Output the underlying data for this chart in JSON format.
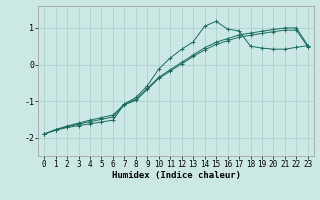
{
  "xlabel": "Humidex (Indice chaleur)",
  "background_color": "#cce8e4",
  "grid_color": "#aacfcb",
  "line_color": "#1a6b5e",
  "xlim": [
    -0.5,
    23.5
  ],
  "ylim": [
    -2.5,
    1.6
  ],
  "xticks": [
    0,
    1,
    2,
    3,
    4,
    5,
    6,
    7,
    8,
    9,
    10,
    11,
    12,
    13,
    14,
    15,
    16,
    17,
    18,
    19,
    20,
    21,
    22,
    23
  ],
  "yticks": [
    -2,
    -1,
    0,
    1
  ],
  "curve1_x": [
    0,
    1,
    2,
    3,
    4,
    5,
    6,
    7,
    8,
    9,
    10,
    11,
    12,
    13,
    14,
    15,
    16,
    17,
    18,
    19,
    20,
    21,
    22,
    23
  ],
  "curve1_y": [
    -1.9,
    -1.8,
    -1.72,
    -1.67,
    -1.62,
    -1.57,
    -1.52,
    -1.08,
    -0.9,
    -0.58,
    -0.12,
    0.18,
    0.42,
    0.62,
    1.05,
    1.18,
    0.97,
    0.92,
    0.5,
    0.45,
    0.42,
    0.42,
    0.47,
    0.52
  ],
  "curve2_x": [
    0,
    1,
    2,
    3,
    4,
    5,
    6,
    7,
    8,
    9,
    10,
    11,
    12,
    13,
    14,
    15,
    16,
    17,
    18,
    19,
    20,
    21,
    22,
    23
  ],
  "curve2_y": [
    -1.9,
    -1.78,
    -1.68,
    -1.6,
    -1.52,
    -1.45,
    -1.38,
    -1.08,
    -0.95,
    -0.65,
    -0.35,
    -0.14,
    0.06,
    0.26,
    0.46,
    0.61,
    0.71,
    0.81,
    0.86,
    0.91,
    0.96,
    1.0,
    1.0,
    0.52
  ],
  "curve3_x": [
    0,
    1,
    2,
    3,
    4,
    5,
    6,
    7,
    8,
    9,
    10,
    11,
    12,
    13,
    14,
    15,
    16,
    17,
    18,
    19,
    20,
    21,
    22,
    23
  ],
  "curve3_y": [
    -1.9,
    -1.78,
    -1.7,
    -1.63,
    -1.56,
    -1.5,
    -1.43,
    -1.1,
    -0.98,
    -0.68,
    -0.38,
    -0.18,
    0.02,
    0.22,
    0.4,
    0.55,
    0.65,
    0.75,
    0.8,
    0.85,
    0.9,
    0.94,
    0.94,
    0.48
  ],
  "tick_fontsize": 5.5,
  "xlabel_fontsize": 6.5
}
